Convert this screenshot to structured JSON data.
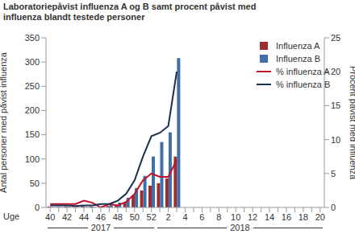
{
  "chart_data": {
    "type": "bar",
    "title": "Laboratoriepåvist influenza A og B samt procent påvist med influenza blandt testede personer",
    "x_label": "Uge",
    "y_label": "Antal personer med påvist influenza",
    "y2_label": "Procent påvist med influenza",
    "annotations": [
      "2017",
      "2018"
    ],
    "categories": [
      "40",
      null,
      "42",
      null,
      "44",
      null,
      "46",
      null,
      "48",
      null,
      "50",
      null,
      "52",
      null,
      "2",
      null,
      "4",
      null,
      "6",
      null,
      "8",
      null,
      "10",
      null,
      "12",
      null,
      "14",
      null,
      "16",
      null,
      "18",
      null,
      "20"
    ],
    "series": [
      {
        "name": "Influenza A",
        "type": "bar",
        "color": "#9b2d30",
        "values": [
          2,
          1,
          2,
          1,
          3,
          2,
          1,
          3,
          5,
          10,
          25,
          35,
          45,
          50,
          60,
          105,
          null,
          null,
          null,
          null,
          null,
          null,
          null,
          null,
          null,
          null,
          null,
          null,
          null,
          null,
          null,
          null,
          null
        ]
      },
      {
        "name": "Influenza B",
        "type": "bar",
        "color": "#3f6ea8",
        "values": [
          1,
          1,
          1,
          1,
          1,
          1,
          3,
          8,
          10,
          20,
          40,
          65,
          105,
          135,
          155,
          308,
          null,
          null,
          null,
          null,
          null,
          null,
          null,
          null,
          null,
          null,
          null,
          null,
          null,
          null,
          null,
          null,
          null
        ]
      },
      {
        "name": "% influenza A",
        "type": "line",
        "axis": "y2",
        "color": "#c0102a",
        "values": [
          0.5,
          0.5,
          0.5,
          0.5,
          1,
          0.7,
          0,
          0.5,
          0.3,
          0.8,
          2,
          4,
          5,
          4.5,
          4.5,
          7,
          null,
          null,
          null,
          null,
          null,
          null,
          null,
          null,
          null,
          null,
          null,
          null,
          null,
          null,
          null,
          null,
          null
        ]
      },
      {
        "name": "% influenza B",
        "type": "line",
        "axis": "y2",
        "color": "#1b2f4f",
        "values": [
          0.3,
          0.3,
          0.3,
          0.2,
          0.3,
          0.3,
          0.5,
          0.5,
          1,
          2,
          4,
          7.5,
          10.5,
          11,
          12,
          20,
          null,
          null,
          null,
          null,
          null,
          null,
          null,
          null,
          null,
          null,
          null,
          null,
          null,
          null,
          null,
          null,
          null
        ]
      }
    ],
    "ylim": [
      0,
      350
    ],
    "yticks": [
      0,
      50,
      100,
      150,
      200,
      250,
      300,
      350
    ],
    "y2lim": [
      0,
      25
    ],
    "y2ticks": [
      0,
      5,
      10,
      15,
      20,
      25
    ],
    "grid": false,
    "legend": "upper right"
  }
}
